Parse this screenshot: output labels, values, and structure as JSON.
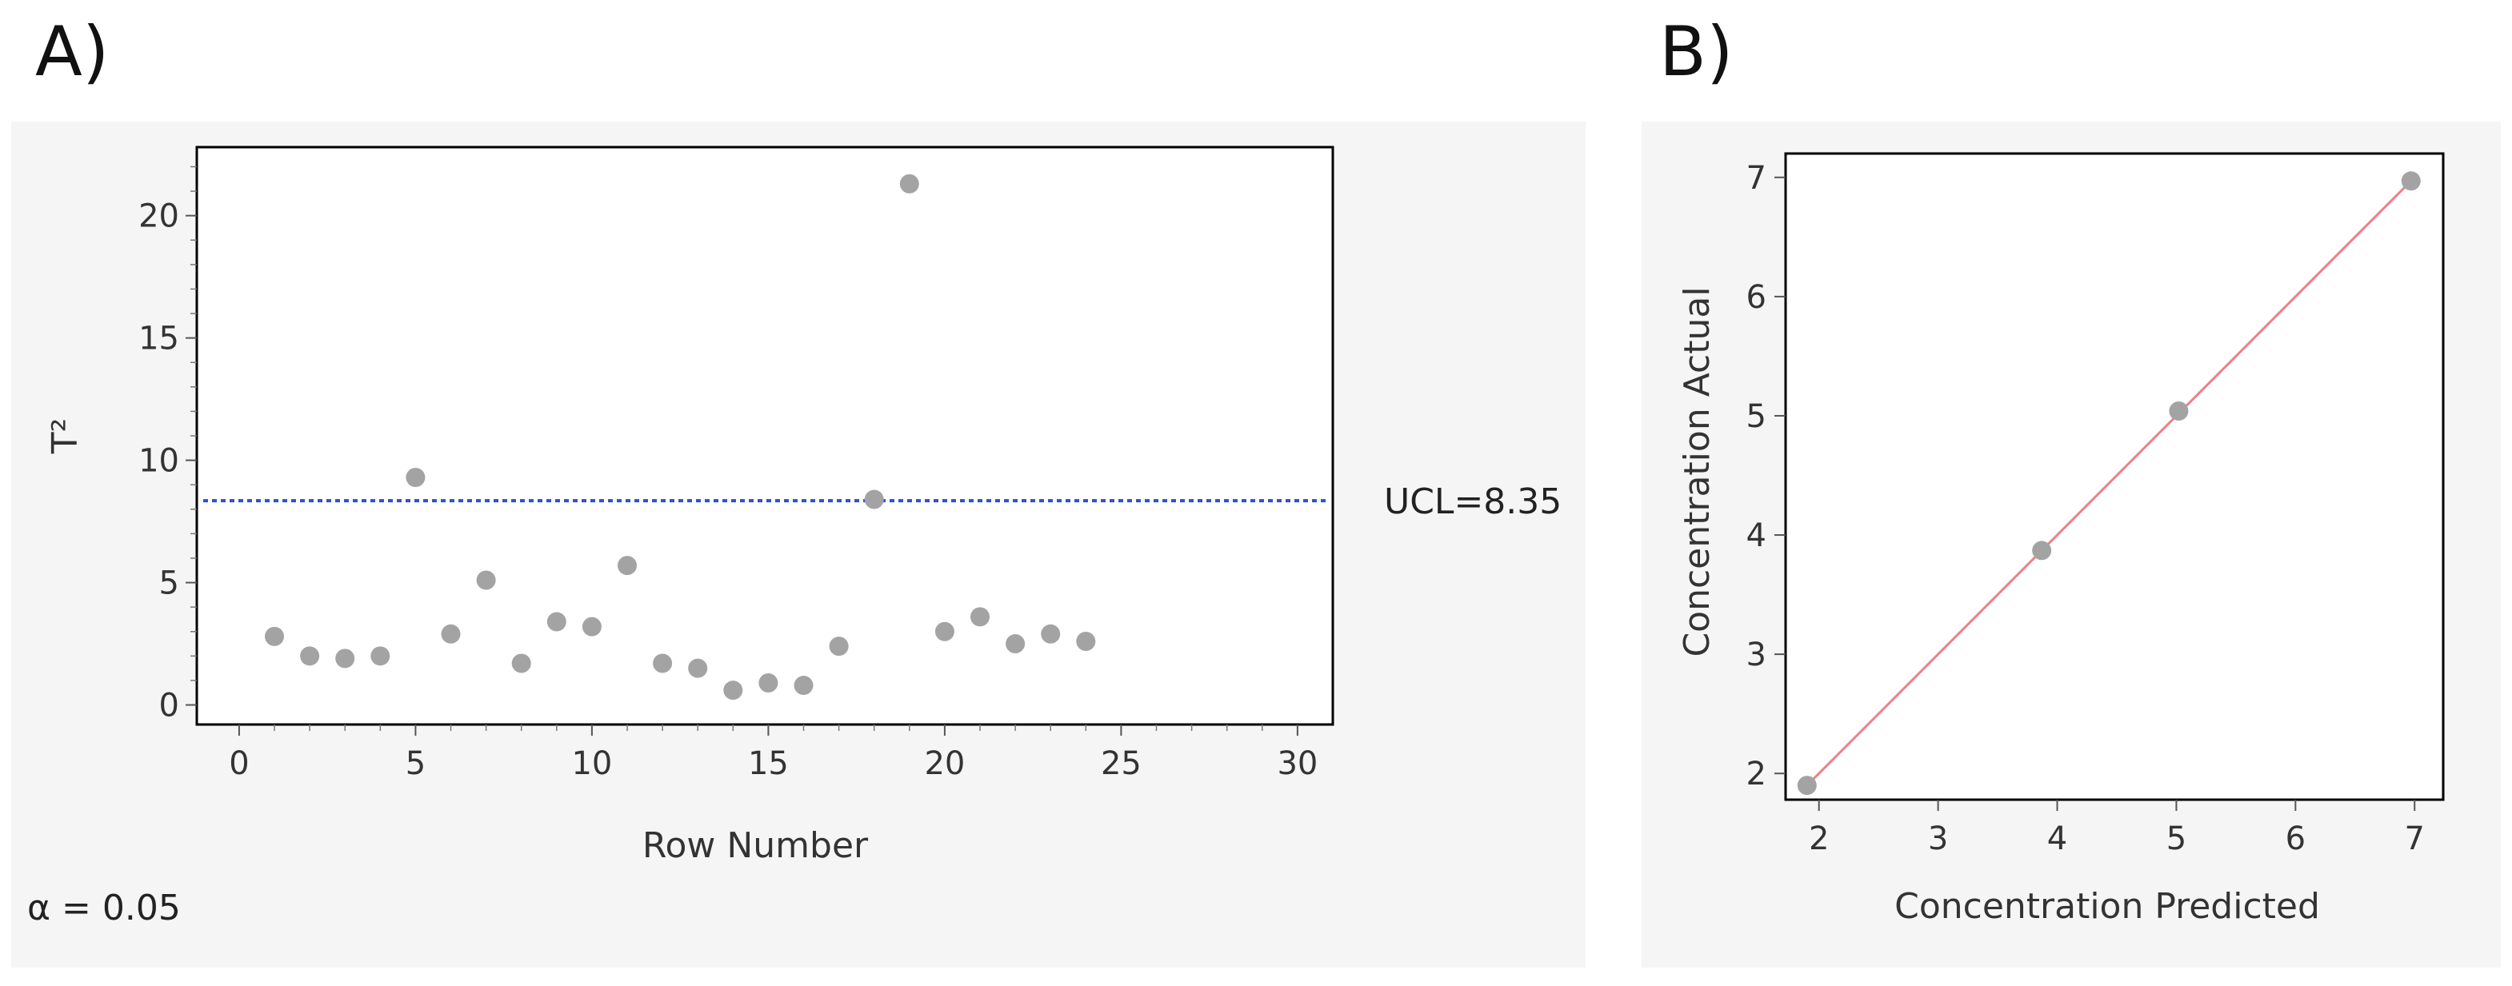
{
  "panels": {
    "a_label": "A)",
    "b_label": "B)"
  },
  "chart_data": [
    {
      "id": "A",
      "type": "scatter",
      "title": "",
      "xlabel": "Row Number",
      "ylabel": "T²",
      "xlim": [
        -1.2,
        31
      ],
      "ylim": [
        -0.8,
        22.8
      ],
      "xticks": [
        0,
        5,
        10,
        15,
        20,
        25,
        30
      ],
      "yticks": [
        0,
        5,
        10,
        15,
        20
      ],
      "x": [
        1,
        2,
        3,
        4,
        5,
        6,
        7,
        8,
        9,
        10,
        11,
        12,
        13,
        14,
        15,
        16,
        17,
        18,
        19,
        20,
        21,
        22,
        23,
        24
      ],
      "y": [
        2.8,
        2.0,
        1.9,
        2.0,
        9.3,
        2.9,
        5.1,
        1.7,
        3.4,
        3.2,
        5.7,
        1.7,
        1.5,
        0.6,
        0.9,
        0.8,
        2.4,
        8.4,
        21.3,
        3.0,
        3.6,
        2.5,
        2.9,
        2.6
      ],
      "control_limit": {
        "value": 8.35,
        "label": "UCL=8.35",
        "color": "#2a50d8"
      },
      "point_color": "#a3a3a3",
      "grid": false,
      "annotation": "α = 0.05"
    },
    {
      "id": "B",
      "type": "scatter",
      "title": "",
      "xlabel": "Concentration Predicted",
      "ylabel": "Concentration Actual",
      "xlim": [
        1.72,
        7.24
      ],
      "ylim": [
        1.78,
        7.2
      ],
      "xticks": [
        2,
        3,
        4,
        5,
        6,
        7
      ],
      "yticks": [
        2,
        3,
        4,
        5,
        6,
        7
      ],
      "x": [
        1.9,
        3.87,
        5.02,
        6.97
      ],
      "y": [
        1.9,
        3.87,
        5.04,
        6.97
      ],
      "fit_line": {
        "from": [
          1.9,
          1.9
        ],
        "to": [
          6.97,
          6.97
        ],
        "color": "#ee7f89"
      },
      "point_color": "#a3a3a3",
      "grid": false
    }
  ]
}
